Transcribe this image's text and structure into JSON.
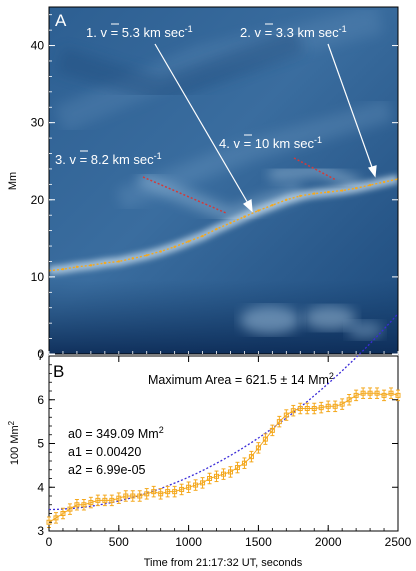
{
  "panel_a": {
    "label": "A",
    "ylabel": "Mm",
    "annotations": [
      {
        "id": "1",
        "prefix": "1. ",
        "value": " = 5.3 km sec",
        "exp": "-1"
      },
      {
        "id": "2",
        "prefix": "2. ",
        "value": " = 3.3 km sec",
        "exp": "-1"
      },
      {
        "id": "3",
        "prefix": "3. ",
        "value": " = 8.2 km sec",
        "exp": "-1"
      },
      {
        "id": "4",
        "prefix": "4. ",
        "value": " = 10 km sec",
        "exp": "-1"
      }
    ],
    "v_symbol": "v"
  },
  "panel_b": {
    "label": "B",
    "max_area_text": "Maximum Area = 621.5 ± 14 Mm",
    "max_area_exp": "2",
    "ylabel": "100 Mm",
    "ylabel_exp": "2",
    "fit": {
      "a0": "a0 = 349.09 Mm",
      "a0_exp": "2",
      "a1": "a1 = 0.00420",
      "a2": "a2 = 6.99e-05"
    }
  },
  "xlabel": "Time from 21:17:32 UT, seconds",
  "colors": {
    "data": "#f4a81d",
    "fit": "#3a2bd8",
    "red_marker": "#d23a3a",
    "image_dark": "#0c2a55",
    "image_mid": "#3f6f9e",
    "image_light": "#cfe2ef"
  },
  "chart_data": [
    {
      "type": "scatter",
      "panel": "A",
      "xlim": [
        0,
        2500
      ],
      "ylim": [
        0,
        45
      ],
      "yticks": [
        0,
        10,
        20,
        30,
        40
      ],
      "ylabel": "Mm",
      "series": [
        {
          "x": [
            0,
            100,
            200,
            300,
            400,
            500,
            600,
            700,
            800,
            900,
            1000,
            1100,
            1200,
            1300,
            1400,
            1500,
            1600,
            1700,
            1800,
            1900,
            2000,
            2100,
            2200,
            2300,
            2400,
            2500
          ],
          "y": [
            10.8,
            11.0,
            11.3,
            11.5,
            11.8,
            12.0,
            12.4,
            12.8,
            13.3,
            13.9,
            14.6,
            15.3,
            16.2,
            17.0,
            17.8,
            18.6,
            19.3,
            20.0,
            20.5,
            20.8,
            21.0,
            21.2,
            21.5,
            21.9,
            22.3,
            22.7
          ]
        }
      ]
    },
    {
      "type": "scatter",
      "panel": "B",
      "xlim": [
        0,
        2500
      ],
      "ylim": [
        3,
        7
      ],
      "xticks": [
        0,
        500,
        1000,
        1500,
        2000,
        2500
      ],
      "yticks": [
        3,
        4,
        5,
        6,
        7
      ],
      "xlabel": "Time from 21:17:32 UT, seconds",
      "ylabel": "100 Mm²",
      "series": [
        {
          "x": [
            0,
            50,
            100,
            150,
            200,
            250,
            300,
            350,
            400,
            450,
            500,
            550,
            600,
            650,
            700,
            750,
            800,
            850,
            900,
            950,
            1000,
            1050,
            1100,
            1150,
            1200,
            1250,
            1300,
            1350,
            1400,
            1450,
            1500,
            1550,
            1600,
            1650,
            1700,
            1750,
            1800,
            1850,
            1900,
            1950,
            2000,
            2050,
            2100,
            2150,
            2200,
            2250,
            2300,
            2350,
            2400,
            2450,
            2500
          ],
          "y": [
            3.2,
            3.3,
            3.4,
            3.5,
            3.6,
            3.6,
            3.65,
            3.7,
            3.7,
            3.7,
            3.75,
            3.8,
            3.8,
            3.8,
            3.85,
            3.9,
            3.85,
            3.9,
            3.9,
            3.95,
            4.0,
            4.05,
            4.1,
            4.2,
            4.25,
            4.3,
            4.35,
            4.45,
            4.55,
            4.7,
            4.9,
            5.1,
            5.3,
            5.5,
            5.65,
            5.75,
            5.8,
            5.8,
            5.8,
            5.82,
            5.85,
            5.85,
            5.9,
            6.0,
            6.1,
            6.15,
            6.15,
            6.15,
            6.1,
            6.15,
            6.1
          ],
          "error": 0.12
        }
      ],
      "fit_curve": {
        "a0": 349.09,
        "a1": 0.0042,
        "a2": 6.99e-05
      }
    }
  ]
}
